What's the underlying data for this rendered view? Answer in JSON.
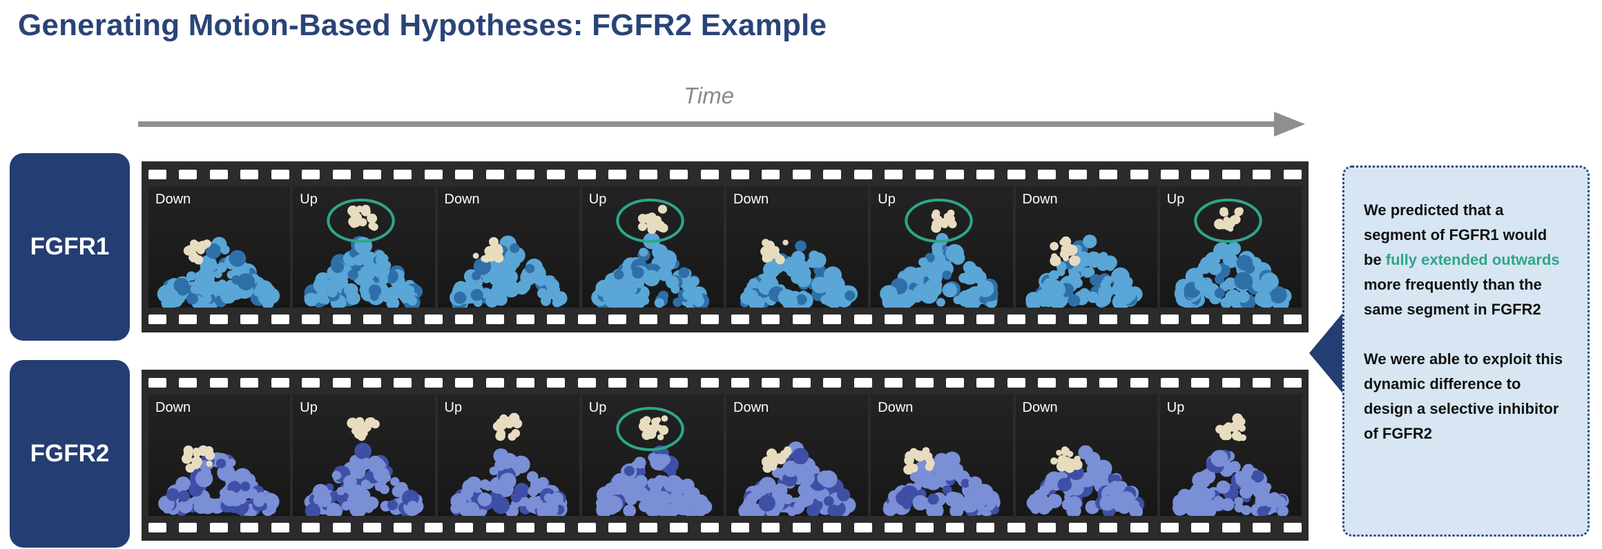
{
  "title": "Generating Motion-Based Hypotheses: FGFR2 Example",
  "time_label": "Time",
  "colors": {
    "title": "#2a4478",
    "label_box": "#243d73",
    "highlight": "#2fa58b",
    "callout_bg": "#d7e6f2",
    "protein_fgfr1": "#5aa6d6",
    "protein_fgfr2": "#7a8fd6",
    "segment": "#e8dcc0"
  },
  "rows": [
    {
      "label": "FGFR1",
      "frames": [
        {
          "state": "Down",
          "circled": false
        },
        {
          "state": "Up",
          "circled": true
        },
        {
          "state": "Down",
          "circled": false
        },
        {
          "state": "Up",
          "circled": true
        },
        {
          "state": "Down",
          "circled": false
        },
        {
          "state": "Up",
          "circled": true
        },
        {
          "state": "Down",
          "circled": false
        },
        {
          "state": "Up",
          "circled": true
        }
      ]
    },
    {
      "label": "FGFR2",
      "frames": [
        {
          "state": "Down",
          "circled": false
        },
        {
          "state": "Up",
          "circled": false
        },
        {
          "state": "Up",
          "circled": false
        },
        {
          "state": "Up",
          "circled": true
        },
        {
          "state": "Down",
          "circled": false
        },
        {
          "state": "Down",
          "circled": false
        },
        {
          "state": "Down",
          "circled": false
        },
        {
          "state": "Up",
          "circled": false
        }
      ]
    }
  ],
  "callout": {
    "p1_before": "We predicted that a segment of FGFR1 would be ",
    "p1_highlight": "fully extended outwards",
    "p1_after": " more frequently than the same segment in FGFR2",
    "p2": "We were able to exploit this dynamic difference to design a selective inhibitor of FGFR2"
  }
}
